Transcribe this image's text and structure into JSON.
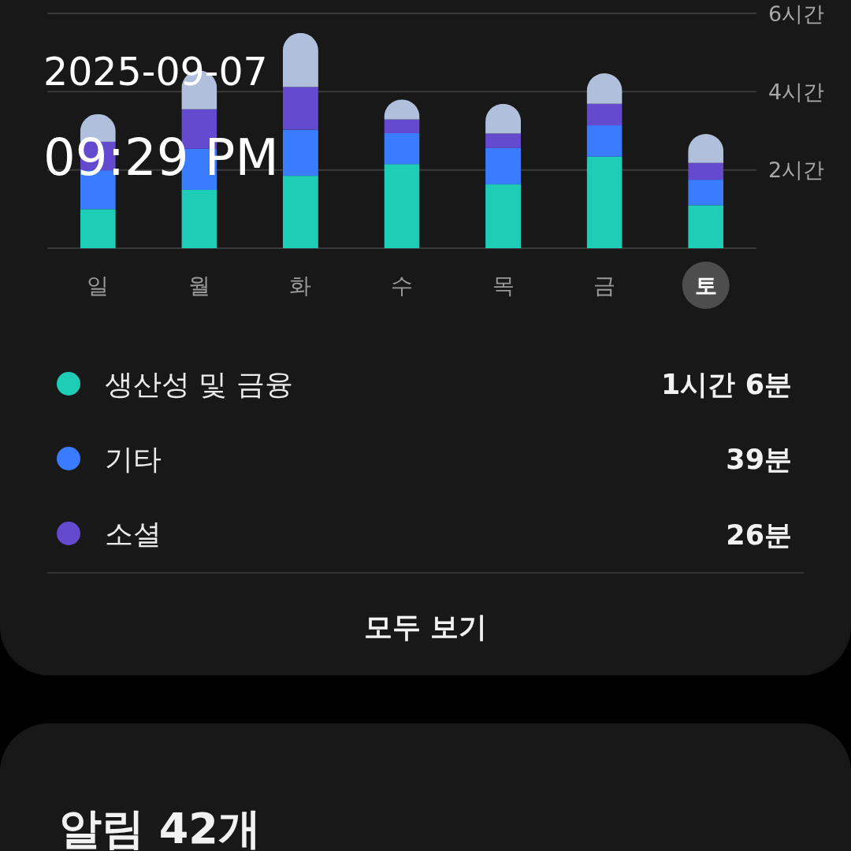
{
  "chart_data": {
    "type": "bar",
    "stacked": true,
    "categories": [
      "일",
      "월",
      "화",
      "수",
      "목",
      "금",
      "토"
    ],
    "series": [
      {
        "name": "생산성 및 금융",
        "color": "#1ecdb6",
        "values": [
          1.0,
          1.49,
          1.85,
          2.15,
          1.63,
          2.34,
          1.1
        ]
      },
      {
        "name": "기타",
        "color": "#3a7cff",
        "values": [
          0.99,
          1.05,
          1.18,
          0.79,
          0.93,
          0.8,
          0.65
        ]
      },
      {
        "name": "소셜",
        "color": "#634acf",
        "values": [
          0.73,
          1.01,
          1.09,
          0.35,
          0.37,
          0.55,
          0.43
        ]
      },
      {
        "color": "#b0bfdb",
        "values": [
          0.71,
          0.99,
          1.38,
          0.51,
          0.76,
          0.78,
          0.74
        ]
      }
    ],
    "ylim": [
      0,
      6
    ],
    "yticks": [
      {
        "value": 0,
        "label": null
      },
      {
        "value": 2,
        "label": "2시간"
      },
      {
        "value": 4,
        "label": "4시간"
      },
      {
        "value": 6,
        "label": "6시간"
      }
    ],
    "grid": "y",
    "legend": "bottom",
    "annotations": [
      "2025-09-07",
      "09:29 PM",
      "1시간 6분",
      "39분",
      "26분",
      "모두 보기",
      "알림 42개"
    ]
  }
}
